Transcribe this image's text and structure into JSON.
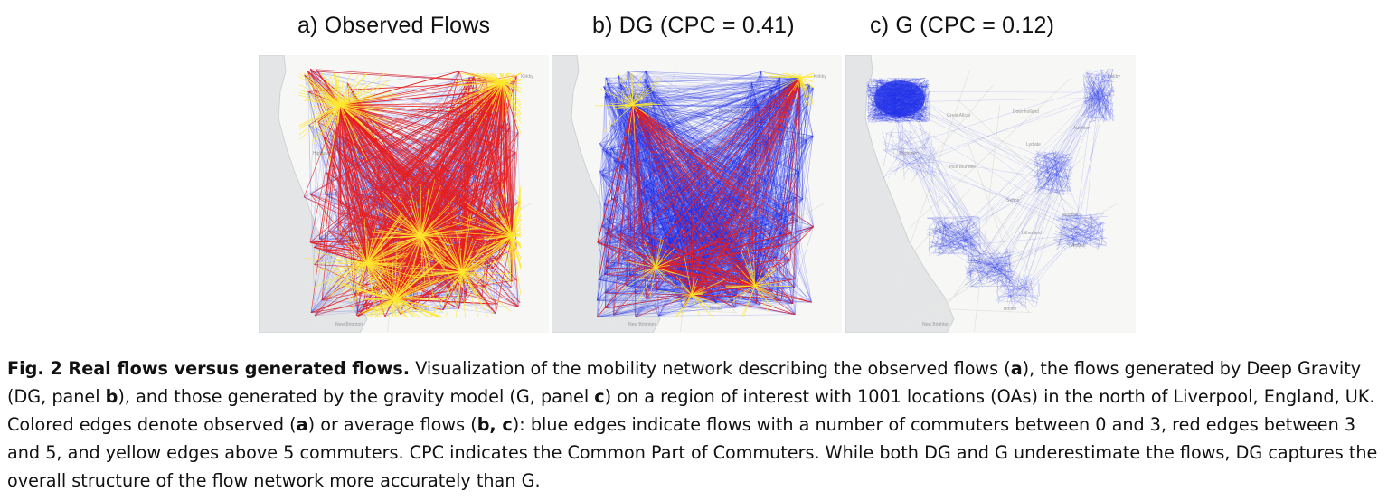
{
  "panels": [
    {
      "title": "a) Observed Flows"
    },
    {
      "title": "b) DG (CPC = 0.41)"
    },
    {
      "title": "c) G (CPC = 0.12)"
    }
  ],
  "map_labels": [
    "Kirkby",
    "Great Altcar",
    "Downholland",
    "Aughton",
    "Lydiate",
    "Hightown",
    "Ince Blundell",
    "Sefton",
    "Maghull",
    "Litherland",
    "Aintree",
    "Bootle",
    "New Brighton"
  ],
  "colors": {
    "low_flow": "#1f2fe8",
    "mid_flow": "#e8201f",
    "high_flow": "#ffe92e",
    "sea": "#e3e5e6",
    "land": "#f7f7f5"
  },
  "caption": {
    "fig_label": "Fig. 2 Real flows versus generated flows.",
    "p1": " Visualization of the mobility network describing the observed flows (",
    "a1": "a",
    "p2": "), the flows generated by Deep Gravity (DG, panel ",
    "b1": "b",
    "p3": "), and those generated by the gravity model (G, panel ",
    "c1": "c",
    "p4": ") on a region of interest with 1001 locations (OAs) in the north of Liverpool, England, UK. Colored edges denote observed (",
    "a2": "a",
    "p5": ") or average flows (",
    "bc": "b, c",
    "p6": "): blue edges indicate flows with a number of commuters between 0 and 3, red edges between 3 and 5, and yellow edges above 5 commuters. CPC indicates the Common Part of Commuters. While both DG and G underestimate the flows, DG captures the overall structure of the flow network more accurately than G."
  }
}
